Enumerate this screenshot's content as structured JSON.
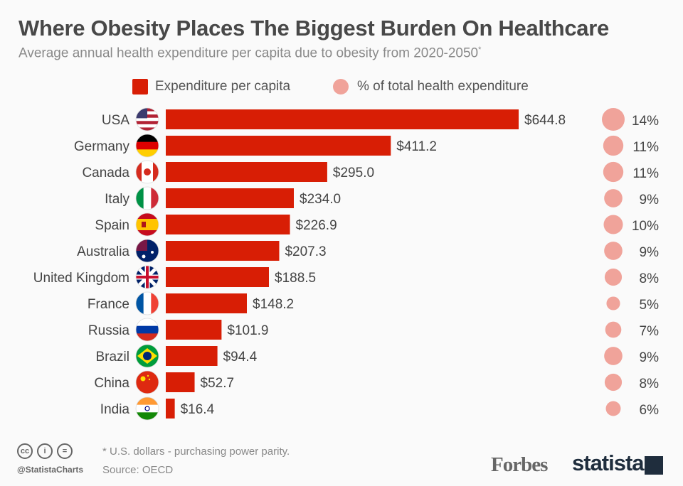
{
  "title": "Where Obesity Places The Biggest Burden On Healthcare",
  "subtitle": "Average annual health expenditure per capita due to obesity from 2020-2050",
  "subtitle_mark": "*",
  "legend": {
    "bar": "Expenditure per capita",
    "circle": "% of total health expenditure"
  },
  "colors": {
    "bar": "#d81e05",
    "circle": "#f0a39a"
  },
  "chart_data": {
    "type": "bar",
    "orientation": "horizontal",
    "categories": [
      "USA",
      "Germany",
      "Canada",
      "Italy",
      "Spain",
      "Australia",
      "United Kingdom",
      "France",
      "Russia",
      "Brazil",
      "China",
      "India"
    ],
    "series": [
      {
        "name": "Expenditure per capita",
        "values": [
          644.8,
          411.2,
          295.0,
          234.0,
          226.9,
          207.3,
          188.5,
          148.2,
          101.9,
          94.4,
          52.7,
          16.4
        ],
        "labels": [
          "$644.8",
          "$411.2",
          "$295.0",
          "$234.0",
          "$226.9",
          "$207.3",
          "$188.5",
          "$148.2",
          "$101.9",
          "$94.4",
          "$52.7",
          "$16.4"
        ]
      },
      {
        "name": "% of total health expenditure",
        "values": [
          14,
          11,
          11,
          9,
          10,
          9,
          8,
          5,
          7,
          9,
          8,
          6
        ],
        "labels": [
          "14%",
          "11%",
          "11%",
          "9%",
          "10%",
          "9%",
          "8%",
          "5%",
          "7%",
          "9%",
          "8%",
          "6%"
        ]
      }
    ],
    "flags": [
      "usa-flag",
      "germany-flag",
      "canada-flag",
      "italy-flag",
      "spain-flag",
      "australia-flag",
      "uk-flag",
      "france-flag",
      "russia-flag",
      "brazil-flag",
      "china-flag",
      "india-flag"
    ]
  },
  "footer": {
    "note": "* U.S. dollars - purchasing power parity.",
    "source": "Source: OECD",
    "handle": "@StatistaCharts",
    "cc": [
      "cc",
      "i",
      "="
    ],
    "forbes": "Forbes",
    "statista": "statista"
  }
}
